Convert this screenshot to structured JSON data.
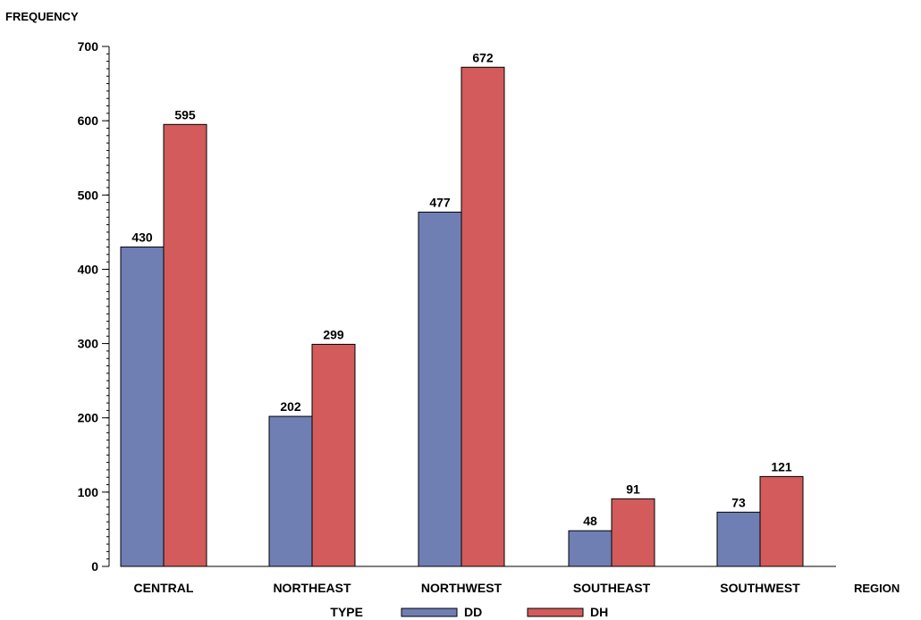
{
  "chart_data": {
    "type": "bar",
    "ylabel": "FREQUENCY",
    "xlabel": "REGION",
    "categories": [
      "CENTRAL",
      "NORTHEAST",
      "NORTHWEST",
      "SOUTHEAST",
      "SOUTHWEST"
    ],
    "series": [
      {
        "name": "DD",
        "values": [
          430,
          202,
          477,
          48,
          73
        ],
        "color": "#6f7fb4"
      },
      {
        "name": "DH",
        "values": [
          595,
          299,
          672,
          91,
          121
        ],
        "color": "#d35b5b"
      }
    ],
    "ylim": [
      0,
      700
    ],
    "yticks": [
      0,
      100,
      200,
      300,
      400,
      500,
      600,
      700
    ],
    "minor_ticks_per_major": 10,
    "data_labels": true,
    "grid": false,
    "legend": {
      "title": "TYPE",
      "placement": "bottom",
      "entries": [
        "DD",
        "DH"
      ]
    }
  }
}
